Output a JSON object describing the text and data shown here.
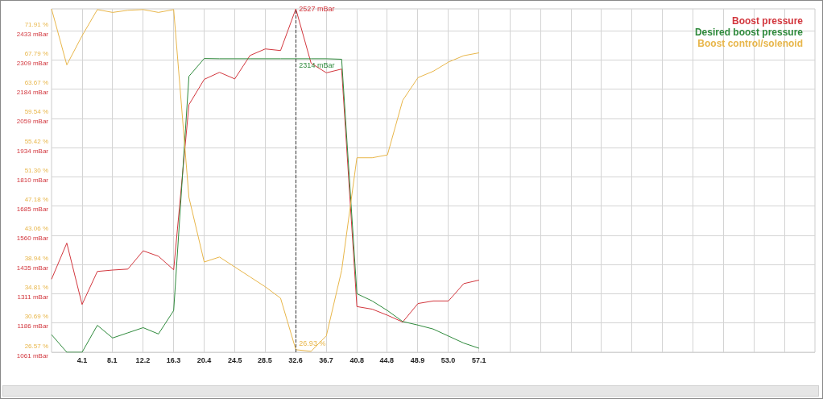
{
  "chart_data": {
    "type": "line",
    "x": [
      0,
      2.04,
      4.08,
      6.12,
      8.16,
      10.2,
      12.24,
      14.28,
      16.32,
      18.36,
      20.4,
      22.44,
      24.48,
      26.52,
      28.56,
      30.6,
      32.64,
      34.68,
      36.72,
      38.76,
      40.8,
      42.84,
      44.88,
      46.92,
      48.96,
      51,
      53.04,
      55.08,
      57.12
    ],
    "series": [
      {
        "name": "Boost pressure",
        "color": "#d2363d",
        "values": [
          1373,
          1527,
          1265,
          1406,
          1412,
          1416,
          1494,
          1471,
          1413,
          2118,
          2226,
          2256,
          2228,
          2328,
          2356,
          2349,
          2527,
          2295,
          2254,
          2270,
          1256,
          1245,
          1219,
          1190,
          1269,
          1280,
          1280,
          1354,
          1369
        ],
        "value_labels": [
          null,
          null,
          null,
          null,
          null,
          null,
          null,
          null,
          null,
          null,
          null,
          null,
          null,
          null,
          null,
          null,
          "2527 mBar",
          null,
          null,
          null,
          null,
          null,
          null,
          null,
          null,
          null,
          null,
          null,
          null
        ]
      },
      {
        "name": "Desired boost pressure",
        "color": "#2f8a3c",
        "values": [
          1136,
          1061,
          1061,
          1176,
          1122,
          1144,
          1166,
          1139,
          1239,
          2239,
          2315,
          2314,
          2314,
          2314,
          2314,
          2314,
          2314,
          2314,
          2314,
          2312,
          1311,
          1280,
          1239,
          1192,
          1177,
          1160,
          1130,
          1100,
          1078
        ],
        "value_labels": [
          null,
          null,
          null,
          null,
          null,
          null,
          null,
          null,
          null,
          null,
          null,
          null,
          null,
          null,
          null,
          null,
          "2314 mBar",
          null,
          null,
          null,
          null,
          null,
          null,
          null,
          null,
          null,
          null,
          null,
          null
        ]
      },
      {
        "name": "Boost control/solenoid",
        "color": "#e8b64a",
        "axis": "y2",
        "values": [
          75.0,
          67.1,
          71.2,
          74.9,
          74.5,
          74.8,
          74.9,
          74.5,
          74.9,
          48.4,
          39.3,
          40.0,
          38.6,
          37.2,
          35.8,
          34.2,
          26.93,
          26.7,
          28.9,
          38.1,
          54.0,
          54.0,
          54.4,
          62.1,
          65.3,
          66.2,
          67.5,
          68.4,
          68.8
        ],
        "value_labels": [
          null,
          null,
          null,
          null,
          null,
          null,
          null,
          null,
          null,
          null,
          null,
          null,
          null,
          null,
          null,
          null,
          "26.93 %",
          null,
          null,
          null,
          null,
          null,
          null,
          null,
          null,
          null,
          null,
          null,
          null
        ]
      }
    ],
    "xlim": [
      0,
      102
    ],
    "xticks": [
      4.1,
      8.1,
      12.2,
      16.3,
      20.4,
      24.5,
      28.5,
      32.6,
      36.7,
      40.8,
      44.8,
      48.9,
      {
        "value": 53.0,
        "label": "53.0"
      },
      57.1,
      {
        "value": 61.2,
        "label": null
      },
      {
        "value": 65.3,
        "label": null
      },
      {
        "value": 69.4,
        "label": null
      },
      {
        "value": 73.4,
        "label": null
      },
      {
        "value": 77.5,
        "label": null
      },
      {
        "value": 81.6,
        "label": null
      },
      {
        "value": 85.7,
        "label": null
      },
      {
        "value": 89.8,
        "label": null
      },
      {
        "value": 93.8,
        "label": null
      },
      {
        "value": 97.9,
        "label": null
      }
    ],
    "ylim": [
      1061,
      2527
    ],
    "yticks": [
      {
        "value": 1061,
        "label": "1061 mBar"
      },
      {
        "value": 1186,
        "label": "1186 mBar"
      },
      {
        "value": 1311,
        "label": "1311 mBar"
      },
      {
        "value": 1435,
        "label": "1435 mBar"
      },
      {
        "value": 1560,
        "label": "1560 mBar"
      },
      {
        "value": 1685,
        "label": "1685 mBar"
      },
      {
        "value": 1810,
        "label": "1810 mBar"
      },
      {
        "value": 1934,
        "label": "1934 mBar"
      },
      {
        "value": 2059,
        "label": "2059 mBar"
      },
      {
        "value": 2184,
        "label": "2184 mBar"
      },
      {
        "value": 2309,
        "label": "2309 mBar"
      },
      {
        "value": 2433,
        "label": "2433 mBar"
      }
    ],
    "y2lim": [
      26.57,
      75.0
    ],
    "y2ticks": [
      {
        "value": 26.57,
        "label": "26.57 %"
      },
      {
        "value": 30.69,
        "label": "30.69 %"
      },
      {
        "value": 34.81,
        "label": "34.81 %"
      },
      {
        "value": 38.94,
        "label": "38.94 %"
      },
      {
        "value": 43.06,
        "label": "43.06 %"
      },
      {
        "value": 47.18,
        "label": "47.18 %"
      },
      {
        "value": 51.3,
        "label": "51.30 %"
      },
      {
        "value": 55.42,
        "label": "55.42 %"
      },
      {
        "value": 59.54,
        "label": "59.54 %"
      },
      {
        "value": 63.67,
        "label": "63.67 %"
      },
      {
        "value": 67.79,
        "label": "67.79 %"
      },
      {
        "value": 71.91,
        "label": "71.91 %"
      }
    ],
    "ref_lines": [
      {
        "axis": "x",
        "value": 32.6,
        "color": "#333333",
        "line_style": "dashed"
      }
    ],
    "grid": true,
    "legend": "top right",
    "marker": "none"
  }
}
